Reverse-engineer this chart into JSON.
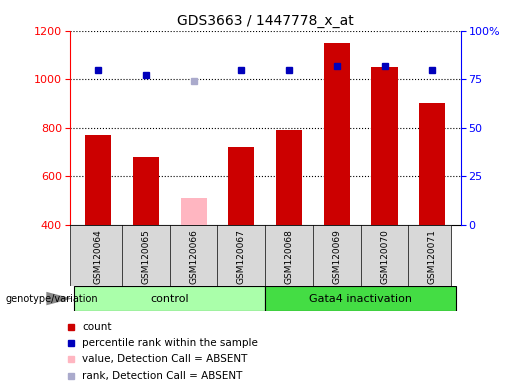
{
  "title": "GDS3663 / 1447778_x_at",
  "samples": [
    "GSM120064",
    "GSM120065",
    "GSM120066",
    "GSM120067",
    "GSM120068",
    "GSM120069",
    "GSM120070",
    "GSM120071"
  ],
  "counts": [
    770,
    680,
    510,
    720,
    790,
    1150,
    1050,
    900
  ],
  "percentile_ranks": [
    80,
    77,
    74,
    80,
    80,
    82,
    82,
    80
  ],
  "absent": [
    false,
    false,
    true,
    false,
    false,
    false,
    false,
    false
  ],
  "group1_label": "control",
  "group2_label": "Gata4 inactivation",
  "group1_indices": [
    0,
    1,
    2,
    3
  ],
  "group2_indices": [
    4,
    5,
    6,
    7
  ],
  "ylim_left": [
    400,
    1200
  ],
  "ylim_right": [
    0,
    100
  ],
  "yticks_left": [
    400,
    600,
    800,
    1000,
    1200
  ],
  "yticks_right": [
    0,
    25,
    50,
    75,
    100
  ],
  "bar_color_normal": "#CC0000",
  "bar_color_absent": "#FFB6C1",
  "dot_color_normal": "#0000BB",
  "dot_color_absent": "#AAAACC",
  "group1_color": "#AAFFAA",
  "group2_color": "#44DD44",
  "legend_items": [
    {
      "label": "count",
      "color": "#CC0000"
    },
    {
      "label": "percentile rank within the sample",
      "color": "#0000BB"
    },
    {
      "label": "value, Detection Call = ABSENT",
      "color": "#FFB6C1"
    },
    {
      "label": "rank, Detection Call = ABSENT",
      "color": "#AAAACC"
    }
  ]
}
